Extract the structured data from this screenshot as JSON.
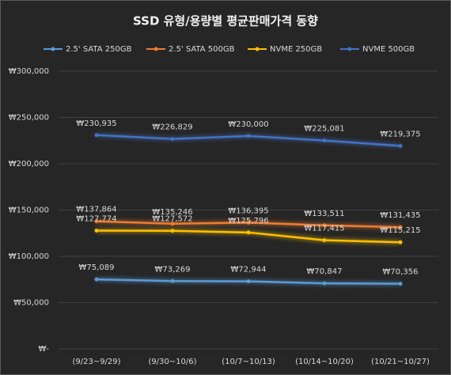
{
  "chart_data": {
    "type": "line",
    "title": "SSD 유형/용량별 평균판매가격 동향",
    "categories": [
      "(9/23~9/29)",
      "(9/30~10/6)",
      "(10/7~10/13)",
      "(10/14~10/20)",
      "(10/21~10/27)"
    ],
    "series": [
      {
        "name": "2.5' SATA 250GB",
        "color": "#5b9bd5",
        "values": [
          75089,
          73269,
          72944,
          70847,
          70356
        ],
        "value_labels": [
          "₩75,089",
          "₩73,269",
          "₩72,944",
          "₩70,847",
          "₩70,356"
        ]
      },
      {
        "name": "2.5' SATA 500GB",
        "color": "#ed7d31",
        "values": [
          137864,
          135246,
          136395,
          133511,
          131435
        ],
        "value_labels": [
          "₩137,864",
          "₩135,246",
          "₩136,395",
          "₩133,511",
          "₩131,435"
        ]
      },
      {
        "name": "NVME 250GB",
        "color": "#ffc000",
        "values": [
          127774,
          127572,
          125796,
          117415,
          115215
        ],
        "value_labels": [
          "₩127,774",
          "₩127,572",
          "₩125,796",
          "₩117,415",
          "₩115,215"
        ]
      },
      {
        "name": "NVME 500GB",
        "color": "#4472c4",
        "values": [
          230935,
          226829,
          230000,
          225081,
          219375
        ],
        "value_labels": [
          "₩230,935",
          "₩226,829",
          "₩230,000",
          "₩225,081",
          "₩219,375"
        ]
      }
    ],
    "ylim": [
      0,
      300000
    ],
    "yticks": [
      {
        "value": 0,
        "label": "₩-"
      },
      {
        "value": 50000,
        "label": "₩50,000"
      },
      {
        "value": 100000,
        "label": "₩100,000"
      },
      {
        "value": 150000,
        "label": "₩150,000"
      },
      {
        "value": 200000,
        "label": "₩200,000"
      },
      {
        "value": 250000,
        "label": "₩250,000"
      },
      {
        "value": 300000,
        "label": "₩300,000"
      }
    ],
    "grid": true
  }
}
